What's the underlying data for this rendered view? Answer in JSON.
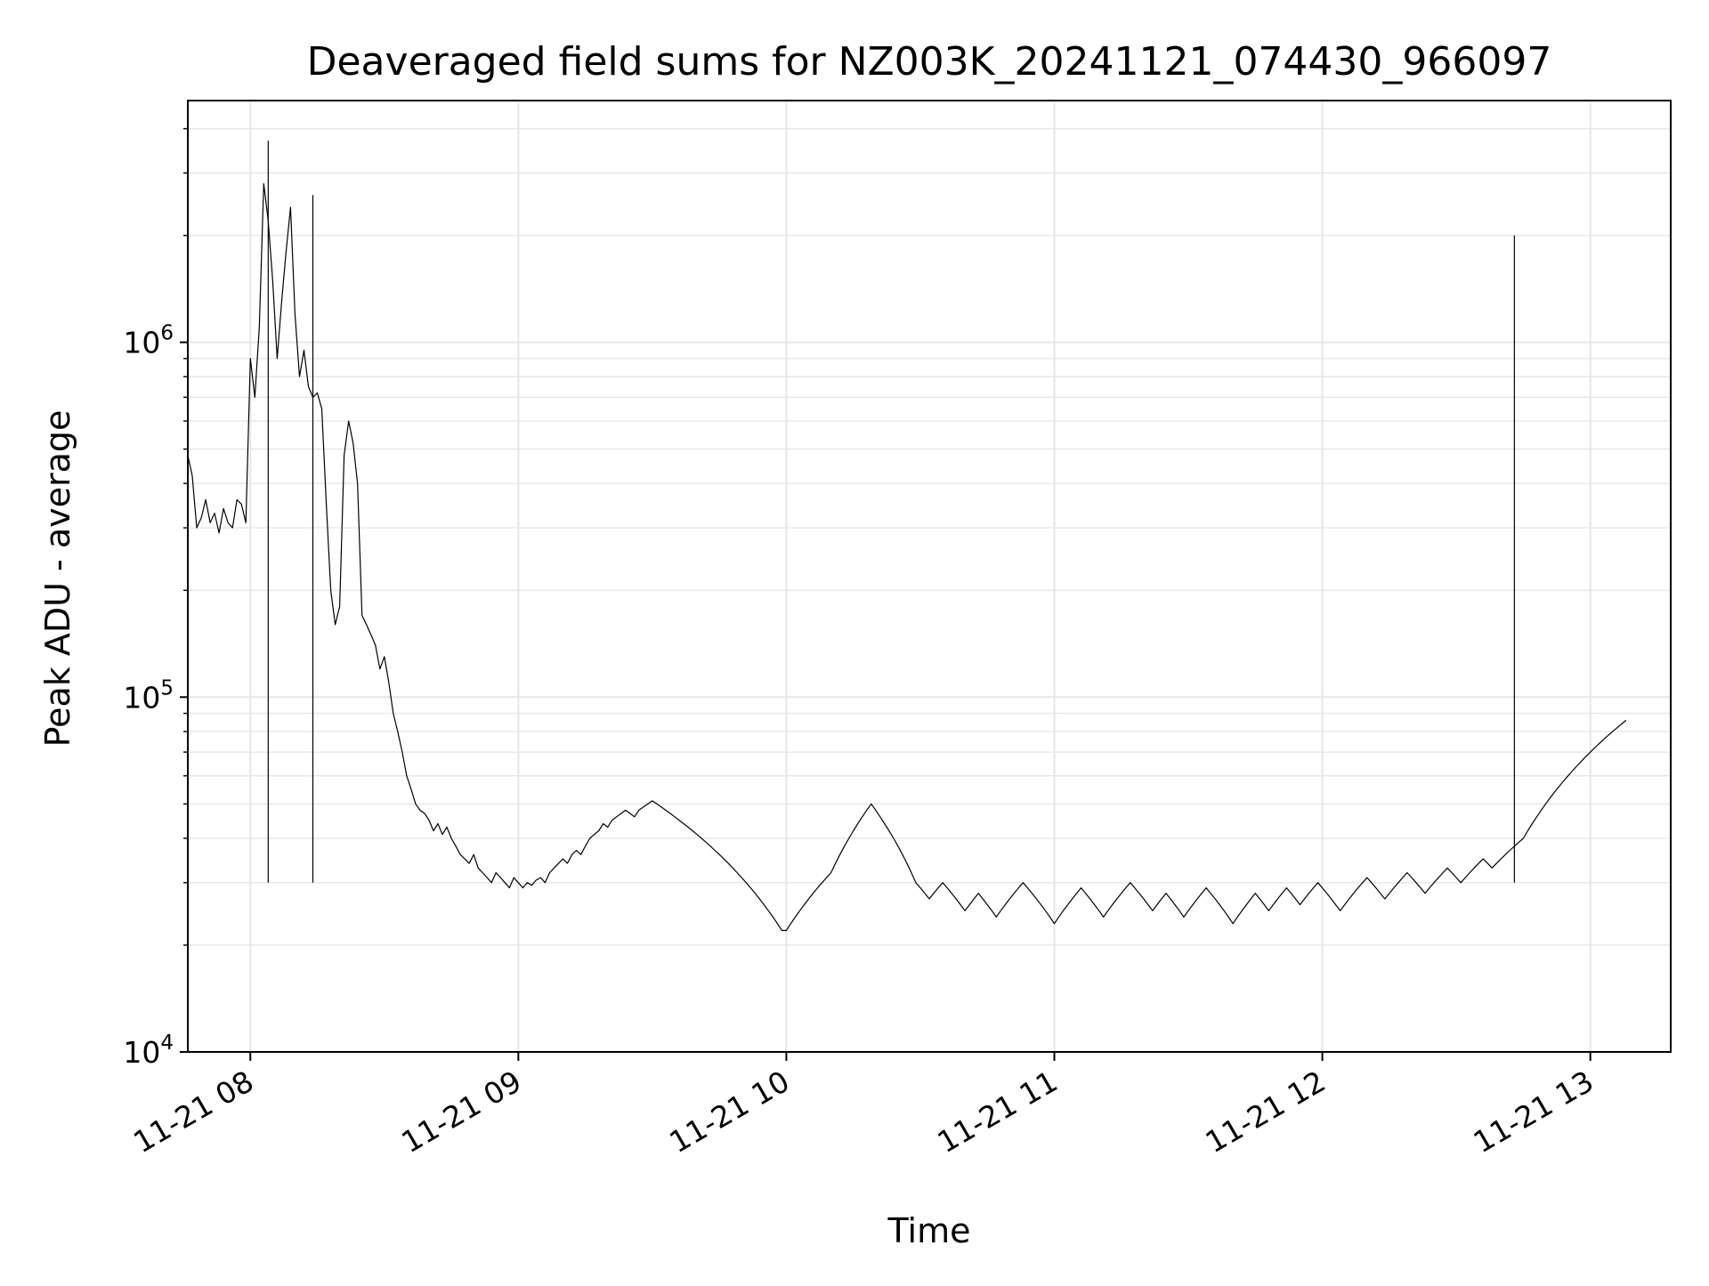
{
  "chart_data": {
    "type": "line",
    "title": "Deaveraged field sums for NZ003K_20241121_074430_966097",
    "xlabel": "Time",
    "ylabel": "Peak ADU - average",
    "yscale": "log",
    "ylim": [
      10000,
      4800000
    ],
    "xlim": [
      "2024-11-21 07:46",
      "2024-11-21 13:18"
    ],
    "grid": true,
    "line_color": "#000000",
    "x_tick_labels": [
      "11-21 08",
      "11-21 09",
      "11-21 10",
      "11-21 11",
      "11-21 12",
      "11-21 13"
    ],
    "x_tick_values": [
      "2024-11-21 08:00",
      "2024-11-21 09:00",
      "2024-11-21 10:00",
      "2024-11-21 11:00",
      "2024-11-21 12:00",
      "2024-11-21 13:00"
    ],
    "y_tick_labels": [
      {
        "base": "10",
        "exp": "4",
        "value": 10000
      },
      {
        "base": "10",
        "exp": "5",
        "value": 100000
      },
      {
        "base": "10",
        "exp": "6",
        "value": 1000000
      }
    ],
    "series": [
      {
        "sampling": "one value per minute",
        "x_start": "2024-11-21 07:46",
        "values": [
          480000,
          420000,
          300000,
          320000,
          360000,
          310000,
          330000,
          290000,
          340000,
          310000,
          300000,
          360000,
          350000,
          310000,
          900000,
          700000,
          1100000,
          2800000,
          2200000,
          1500000,
          900000,
          1300000,
          1800000,
          2400000,
          1200000,
          800000,
          950000,
          750000,
          700000,
          720000,
          650000,
          350000,
          200000,
          160000,
          180000,
          480000,
          600000,
          520000,
          400000,
          170000,
          160000,
          150000,
          140000,
          120000,
          130000,
          110000,
          90000,
          80000,
          70000,
          60000,
          55000,
          50000,
          48000,
          47000,
          45000,
          42000,
          44000,
          41000,
          43000,
          40000,
          38000,
          36000,
          35000,
          34000,
          36000,
          33000,
          32000,
          31000,
          30000,
          32000,
          31000,
          30000,
          29000,
          31000,
          30000,
          29000,
          30000,
          29500,
          30500,
          31000,
          30000,
          32000,
          33000,
          34000,
          35000,
          34000,
          36000,
          37000,
          36000,
          38000,
          40000,
          41000,
          42000,
          44000,
          43000,
          45000,
          46000,
          47000,
          48000,
          47000,
          46000,
          48000,
          49000,
          50000,
          51000,
          50000,
          49000,
          48000,
          47000,
          46000,
          45000,
          44000,
          43000,
          42000,
          41000,
          40000,
          39000,
          38000,
          37000,
          36000,
          35000,
          34000,
          33000,
          32000,
          31000,
          30000,
          29000,
          28000,
          27000,
          26000,
          25000,
          24000,
          23000,
          22000,
          22000,
          23000,
          24000,
          25000,
          26000,
          27000,
          28000,
          29000,
          30000,
          31000,
          32000,
          34000,
          36000,
          38000,
          40000,
          42000,
          44000,
          46000,
          48000,
          50000,
          48000,
          46000,
          44000,
          42000,
          40000,
          38000,
          36000,
          34000,
          32000,
          30000,
          29000,
          28000,
          27000,
          28000,
          29000,
          30000,
          29000,
          28000,
          27000,
          26000,
          25000,
          26000,
          27000,
          28000,
          27000,
          26000,
          25000,
          24000,
          25000,
          26000,
          27000,
          28000,
          29000,
          30000,
          29000,
          28000,
          27000,
          26000,
          25000,
          24000,
          23000,
          24000,
          25000,
          26000,
          27000,
          28000,
          29000,
          28000,
          27000,
          26000,
          25000,
          24000,
          25000,
          26000,
          27000,
          28000,
          29000,
          30000,
          29000,
          28000,
          27000,
          26000,
          25000,
          26000,
          27000,
          28000,
          27000,
          26000,
          25000,
          24000,
          25000,
          26000,
          27000,
          28000,
          29000,
          28000,
          27000,
          26000,
          25000,
          24000,
          23000,
          24000,
          25000,
          26000,
          27000,
          28000,
          27000,
          26000,
          25000,
          26000,
          27000,
          28000,
          29000,
          28000,
          27000,
          26000,
          27000,
          28000,
          29000,
          30000,
          29000,
          28000,
          27000,
          26000,
          25000,
          26000,
          27000,
          28000,
          29000,
          30000,
          31000,
          30000,
          29000,
          28000,
          27000,
          28000,
          29000,
          30000,
          31000,
          32000,
          31000,
          30000,
          29000,
          28000,
          29000,
          30000,
          31000,
          32000,
          33000,
          32000,
          31000,
          30000,
          31000,
          32000,
          33000,
          34000,
          35000,
          34000,
          33000,
          34000,
          35000,
          36000,
          37000,
          38000,
          39000,
          40000,
          42000,
          44000,
          46000,
          48000,
          50000,
          52000,
          54000,
          56000,
          58000,
          60000,
          62000,
          64000,
          66000,
          68000,
          70000,
          72000,
          74000,
          76000,
          78000,
          80000,
          82000,
          84000,
          86000
        ]
      }
    ],
    "extreme_peaks": [
      {
        "x": "2024-11-21 08:04",
        "y": 3700000
      },
      {
        "x": "2024-11-21 08:14",
        "y": 2600000
      },
      {
        "x": "2024-11-21 12:43",
        "y": 2000000
      }
    ]
  }
}
